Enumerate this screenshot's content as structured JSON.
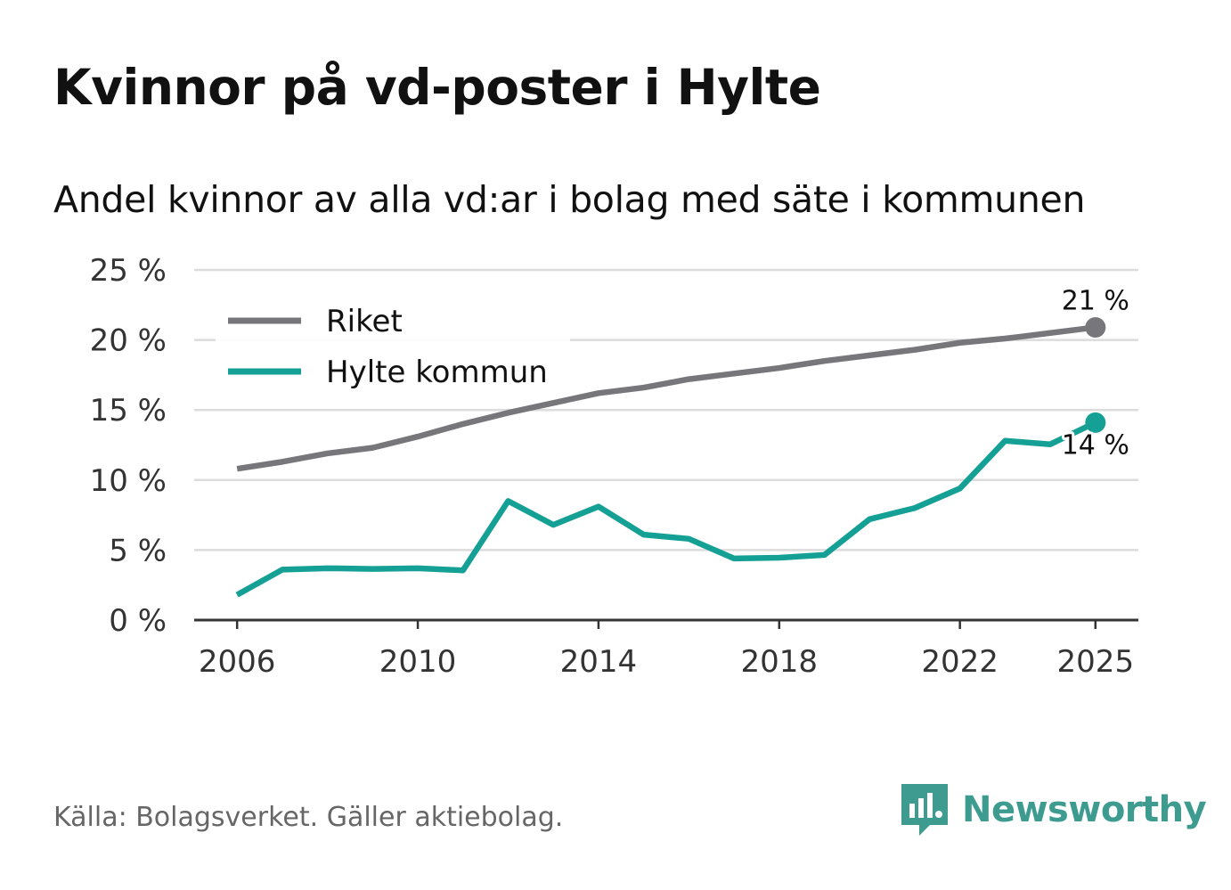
{
  "title": "Kvinnor på vd-poster i Hylte",
  "subtitle": "Andel kvinnor av alla vd:ar i bolag med säte i kommunen",
  "source": "Källa: Bolagsverket. Gäller aktiebolag.",
  "brand": {
    "name": "Newsworthy",
    "icon": "newsworthy-logo-icon",
    "color": "#3d9b8f"
  },
  "chart_data": {
    "type": "line",
    "title": "Kvinnor på vd-poster i Hylte",
    "subtitle": "Andel kvinnor av alla vd:ar i bolag med säte i kommunen",
    "xlabel": "",
    "ylabel": "",
    "x": [
      2006,
      2007,
      2008,
      2009,
      2010,
      2011,
      2012,
      2013,
      2014,
      2015,
      2016,
      2017,
      2018,
      2019,
      2020,
      2021,
      2022,
      2023,
      2024,
      2025
    ],
    "x_ticks": [
      "2006",
      "2010",
      "2014",
      "2018",
      "2022",
      "2025"
    ],
    "y_ticks": [
      "0 %",
      "5 %",
      "10 %",
      "15 %",
      "20 %",
      "25 %"
    ],
    "ylim": [
      0,
      25
    ],
    "grid": true,
    "legend_position": "top-left",
    "series": [
      {
        "name": "Riket",
        "color": "#77767b",
        "values": [
          10.8,
          11.3,
          11.9,
          12.3,
          13.1,
          14.0,
          14.8,
          15.5,
          16.2,
          16.6,
          17.2,
          17.6,
          18.0,
          18.5,
          18.9,
          19.3,
          19.8,
          20.1,
          20.5,
          20.9
        ],
        "end_label": "21 %"
      },
      {
        "name": "Hylte kommun",
        "color": "#14a095",
        "values": [
          1.8,
          3.6,
          3.7,
          3.65,
          3.7,
          3.55,
          8.5,
          6.8,
          8.1,
          6.1,
          5.8,
          4.4,
          4.45,
          4.65,
          7.2,
          8.0,
          9.4,
          12.8,
          12.55,
          14.1
        ],
        "end_label": "14 %"
      }
    ]
  }
}
